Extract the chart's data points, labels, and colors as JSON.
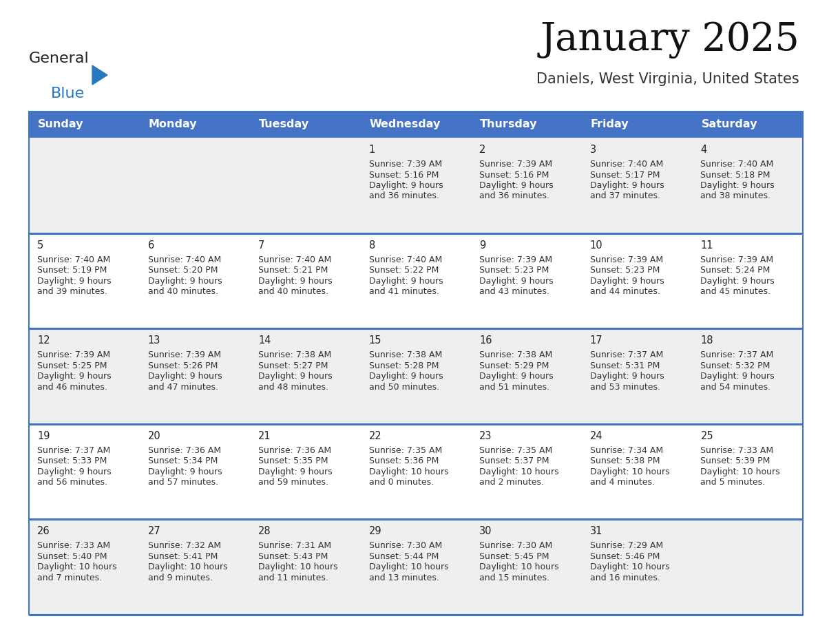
{
  "title": "January 2025",
  "subtitle": "Daniels, West Virginia, United States",
  "header_bg": "#4472C4",
  "header_text_color": "#FFFFFF",
  "row_bg_even": "#EFEFEF",
  "row_bg_odd": "#FFFFFF",
  "border_color": "#4472C4",
  "day_names": [
    "Sunday",
    "Monday",
    "Tuesday",
    "Wednesday",
    "Thursday",
    "Friday",
    "Saturday"
  ],
  "days": [
    {
      "date": 1,
      "col": 3,
      "row": 0,
      "sunrise": "7:39 AM",
      "sunset": "5:16 PM",
      "daylight_line1": "Daylight: 9 hours",
      "daylight_line2": "and 36 minutes."
    },
    {
      "date": 2,
      "col": 4,
      "row": 0,
      "sunrise": "7:39 AM",
      "sunset": "5:16 PM",
      "daylight_line1": "Daylight: 9 hours",
      "daylight_line2": "and 36 minutes."
    },
    {
      "date": 3,
      "col": 5,
      "row": 0,
      "sunrise": "7:40 AM",
      "sunset": "5:17 PM",
      "daylight_line1": "Daylight: 9 hours",
      "daylight_line2": "and 37 minutes."
    },
    {
      "date": 4,
      "col": 6,
      "row": 0,
      "sunrise": "7:40 AM",
      "sunset": "5:18 PM",
      "daylight_line1": "Daylight: 9 hours",
      "daylight_line2": "and 38 minutes."
    },
    {
      "date": 5,
      "col": 0,
      "row": 1,
      "sunrise": "7:40 AM",
      "sunset": "5:19 PM",
      "daylight_line1": "Daylight: 9 hours",
      "daylight_line2": "and 39 minutes."
    },
    {
      "date": 6,
      "col": 1,
      "row": 1,
      "sunrise": "7:40 AM",
      "sunset": "5:20 PM",
      "daylight_line1": "Daylight: 9 hours",
      "daylight_line2": "and 40 minutes."
    },
    {
      "date": 7,
      "col": 2,
      "row": 1,
      "sunrise": "7:40 AM",
      "sunset": "5:21 PM",
      "daylight_line1": "Daylight: 9 hours",
      "daylight_line2": "and 40 minutes."
    },
    {
      "date": 8,
      "col": 3,
      "row": 1,
      "sunrise": "7:40 AM",
      "sunset": "5:22 PM",
      "daylight_line1": "Daylight: 9 hours",
      "daylight_line2": "and 41 minutes."
    },
    {
      "date": 9,
      "col": 4,
      "row": 1,
      "sunrise": "7:39 AM",
      "sunset": "5:23 PM",
      "daylight_line1": "Daylight: 9 hours",
      "daylight_line2": "and 43 minutes."
    },
    {
      "date": 10,
      "col": 5,
      "row": 1,
      "sunrise": "7:39 AM",
      "sunset": "5:23 PM",
      "daylight_line1": "Daylight: 9 hours",
      "daylight_line2": "and 44 minutes."
    },
    {
      "date": 11,
      "col": 6,
      "row": 1,
      "sunrise": "7:39 AM",
      "sunset": "5:24 PM",
      "daylight_line1": "Daylight: 9 hours",
      "daylight_line2": "and 45 minutes."
    },
    {
      "date": 12,
      "col": 0,
      "row": 2,
      "sunrise": "7:39 AM",
      "sunset": "5:25 PM",
      "daylight_line1": "Daylight: 9 hours",
      "daylight_line2": "and 46 minutes."
    },
    {
      "date": 13,
      "col": 1,
      "row": 2,
      "sunrise": "7:39 AM",
      "sunset": "5:26 PM",
      "daylight_line1": "Daylight: 9 hours",
      "daylight_line2": "and 47 minutes."
    },
    {
      "date": 14,
      "col": 2,
      "row": 2,
      "sunrise": "7:38 AM",
      "sunset": "5:27 PM",
      "daylight_line1": "Daylight: 9 hours",
      "daylight_line2": "and 48 minutes."
    },
    {
      "date": 15,
      "col": 3,
      "row": 2,
      "sunrise": "7:38 AM",
      "sunset": "5:28 PM",
      "daylight_line1": "Daylight: 9 hours",
      "daylight_line2": "and 50 minutes."
    },
    {
      "date": 16,
      "col": 4,
      "row": 2,
      "sunrise": "7:38 AM",
      "sunset": "5:29 PM",
      "daylight_line1": "Daylight: 9 hours",
      "daylight_line2": "and 51 minutes."
    },
    {
      "date": 17,
      "col": 5,
      "row": 2,
      "sunrise": "7:37 AM",
      "sunset": "5:31 PM",
      "daylight_line1": "Daylight: 9 hours",
      "daylight_line2": "and 53 minutes."
    },
    {
      "date": 18,
      "col": 6,
      "row": 2,
      "sunrise": "7:37 AM",
      "sunset": "5:32 PM",
      "daylight_line1": "Daylight: 9 hours",
      "daylight_line2": "and 54 minutes."
    },
    {
      "date": 19,
      "col": 0,
      "row": 3,
      "sunrise": "7:37 AM",
      "sunset": "5:33 PM",
      "daylight_line1": "Daylight: 9 hours",
      "daylight_line2": "and 56 minutes."
    },
    {
      "date": 20,
      "col": 1,
      "row": 3,
      "sunrise": "7:36 AM",
      "sunset": "5:34 PM",
      "daylight_line1": "Daylight: 9 hours",
      "daylight_line2": "and 57 minutes."
    },
    {
      "date": 21,
      "col": 2,
      "row": 3,
      "sunrise": "7:36 AM",
      "sunset": "5:35 PM",
      "daylight_line1": "Daylight: 9 hours",
      "daylight_line2": "and 59 minutes."
    },
    {
      "date": 22,
      "col": 3,
      "row": 3,
      "sunrise": "7:35 AM",
      "sunset": "5:36 PM",
      "daylight_line1": "Daylight: 10 hours",
      "daylight_line2": "and 0 minutes."
    },
    {
      "date": 23,
      "col": 4,
      "row": 3,
      "sunrise": "7:35 AM",
      "sunset": "5:37 PM",
      "daylight_line1": "Daylight: 10 hours",
      "daylight_line2": "and 2 minutes."
    },
    {
      "date": 24,
      "col": 5,
      "row": 3,
      "sunrise": "7:34 AM",
      "sunset": "5:38 PM",
      "daylight_line1": "Daylight: 10 hours",
      "daylight_line2": "and 4 minutes."
    },
    {
      "date": 25,
      "col": 6,
      "row": 3,
      "sunrise": "7:33 AM",
      "sunset": "5:39 PM",
      "daylight_line1": "Daylight: 10 hours",
      "daylight_line2": "and 5 minutes."
    },
    {
      "date": 26,
      "col": 0,
      "row": 4,
      "sunrise": "7:33 AM",
      "sunset": "5:40 PM",
      "daylight_line1": "Daylight: 10 hours",
      "daylight_line2": "and 7 minutes."
    },
    {
      "date": 27,
      "col": 1,
      "row": 4,
      "sunrise": "7:32 AM",
      "sunset": "5:41 PM",
      "daylight_line1": "Daylight: 10 hours",
      "daylight_line2": "and 9 minutes."
    },
    {
      "date": 28,
      "col": 2,
      "row": 4,
      "sunrise": "7:31 AM",
      "sunset": "5:43 PM",
      "daylight_line1": "Daylight: 10 hours",
      "daylight_line2": "and 11 minutes."
    },
    {
      "date": 29,
      "col": 3,
      "row": 4,
      "sunrise": "7:30 AM",
      "sunset": "5:44 PM",
      "daylight_line1": "Daylight: 10 hours",
      "daylight_line2": "and 13 minutes."
    },
    {
      "date": 30,
      "col": 4,
      "row": 4,
      "sunrise": "7:30 AM",
      "sunset": "5:45 PM",
      "daylight_line1": "Daylight: 10 hours",
      "daylight_line2": "and 15 minutes."
    },
    {
      "date": 31,
      "col": 5,
      "row": 4,
      "sunrise": "7:29 AM",
      "sunset": "5:46 PM",
      "daylight_line1": "Daylight: 10 hours",
      "daylight_line2": "and 16 minutes."
    }
  ],
  "num_rows": 5,
  "num_cols": 7,
  "logo_text1": "General",
  "logo_text2": "Blue",
  "logo_color1": "#222222",
  "logo_color2": "#2878BE",
  "logo_triangle_color": "#2878BE",
  "title_color": "#111111",
  "subtitle_color": "#333333",
  "text_color": "#333333",
  "date_color": "#222222"
}
